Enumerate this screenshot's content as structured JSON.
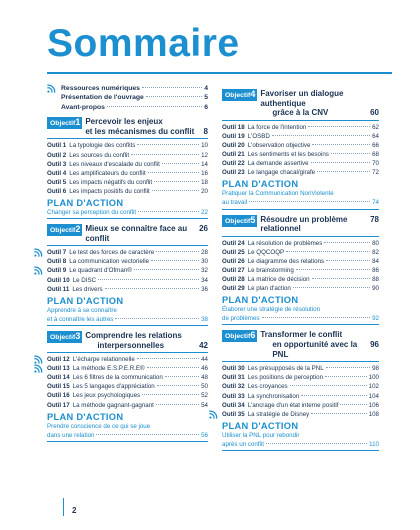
{
  "page": {
    "title": "Sommaire",
    "number": "2"
  },
  "front_matter": [
    {
      "label": "Ressources numériques",
      "page": "4",
      "rss": true
    },
    {
      "label": "Présentation de l'ouvrage",
      "page": "5",
      "rss": false
    },
    {
      "label": "Avant-propos",
      "page": "6",
      "rss": false
    }
  ],
  "objectives": [
    {
      "badge": "Objectif",
      "number": "1",
      "title_line1": "Percevoir les enjeux",
      "title_line2": "et les mécanismes du conflit",
      "page": "8",
      "tools": [
        {
          "label": "Outil 1",
          "text": "La typologie des conflits",
          "page": "10",
          "rss": false
        },
        {
          "label": "Outil 2",
          "text": "Les sources du conflit",
          "page": "12",
          "rss": false
        },
        {
          "label": "Outil 3",
          "text": "Les niveaux d'escalade du conflit",
          "page": "14",
          "rss": false
        },
        {
          "label": "Outil 4",
          "text": "Les amplificateurs du conflit",
          "page": "16",
          "rss": false
        },
        {
          "label": "Outil 5",
          "text": "Les impacts négatifs du conflit",
          "page": "18",
          "rss": false
        },
        {
          "label": "Outil 6",
          "text": "Les impacts positifs du conflit",
          "page": "20",
          "rss": false
        }
      ],
      "plan": {
        "title": "PLAN D'ACTION",
        "lines": [
          "Changer sa perception du conflit"
        ],
        "page": "22"
      }
    },
    {
      "badge": "Objectif",
      "number": "2",
      "title_line1": "",
      "title_line2": "Mieux se connaître face au conflit",
      "page": "26",
      "tools": [
        {
          "label": "Outil 7",
          "text": "Le test des forces de caractère",
          "page": "28",
          "rss": true
        },
        {
          "label": "Outil 8",
          "text": "La communication vectorielle",
          "page": "30",
          "rss": false
        },
        {
          "label": "Outil 9",
          "text": "Le quadrant d'Ofman®",
          "page": "32",
          "rss": true
        },
        {
          "label": "Outil 10",
          "text": "Le DISC",
          "page": "34",
          "rss": false
        },
        {
          "label": "Outil 11",
          "text": "Les drivers",
          "page": "36",
          "rss": false
        }
      ],
      "plan": {
        "title": "PLAN D'ACTION",
        "lines": [
          "Apprendre à se connaître",
          "et à connaître les autres"
        ],
        "page": "38"
      }
    },
    {
      "badge": "Objectif",
      "number": "3",
      "title_line1": "Comprendre les relations",
      "title_line2": "interpersonnelles",
      "page": "42",
      "tools": [
        {
          "label": "Outil 12",
          "text": "L'écharpe relationnelle",
          "page": "44",
          "rss": true
        },
        {
          "label": "Outil 13",
          "text": "La méthode E.S.P.E.R.E®",
          "page": "46",
          "rss": true
        },
        {
          "label": "Outil 14",
          "text": "Les 6 filtres de la communication",
          "page": "48",
          "rss": false
        },
        {
          "label": "Outil 15",
          "text": "Les 5 langages d'appréciation",
          "page": "50",
          "rss": false
        },
        {
          "label": "Outil 16",
          "text": "Les jeux psychologiques",
          "page": "52",
          "rss": false
        },
        {
          "label": "Outil 17",
          "text": "La méthode gagnant-gagnant",
          "page": "54",
          "rss": false
        }
      ],
      "plan": {
        "title": "PLAN D'ACTION",
        "lines": [
          "Prendre conscience de ce qui se joue",
          "dans une relation"
        ],
        "page": "56"
      }
    },
    {
      "badge": "Objectif",
      "number": "4",
      "title_line1": "Favoriser un dialogue authentique",
      "title_line2": "grâce à la CNV",
      "page": "60",
      "tools": [
        {
          "label": "Outil 18",
          "text": "La force de l'intention",
          "page": "62",
          "rss": false
        },
        {
          "label": "Outil 19",
          "text": "L'OSBD",
          "page": "64",
          "rss": false
        },
        {
          "label": "Outil 20",
          "text": "L'observation objective",
          "page": "66",
          "rss": false
        },
        {
          "label": "Outil 21",
          "text": "Les sentiments et les besoins",
          "page": "68",
          "rss": false
        },
        {
          "label": "Outil 22",
          "text": "La demande assertive",
          "page": "70",
          "rss": false
        },
        {
          "label": "Outil 23",
          "text": "Le langage chacal/girafe",
          "page": "72",
          "rss": false
        }
      ],
      "plan": {
        "title": "PLAN D'ACTION",
        "lines": [
          "Pratiquer la Communication NonViolente",
          "au travail"
        ],
        "page": "74"
      }
    },
    {
      "badge": "Objectif",
      "number": "5",
      "title_line1": "",
      "title_line2": "Résoudre un problème relationnel",
      "page": "78",
      "tools": [
        {
          "label": "Outil 24",
          "text": "La résolution de problèmes",
          "page": "80",
          "rss": false
        },
        {
          "label": "Outil 25",
          "text": "Le QQCOQP",
          "page": "82",
          "rss": false
        },
        {
          "label": "Outil 26",
          "text": "Le diagramme des relations",
          "page": "84",
          "rss": false
        },
        {
          "label": "Outil 27",
          "text": "Le brainstorming",
          "page": "86",
          "rss": false
        },
        {
          "label": "Outil 28",
          "text": "La matrice de décision",
          "page": "88",
          "rss": false
        },
        {
          "label": "Outil 29",
          "text": "Le plan d'action",
          "page": "90",
          "rss": false
        }
      ],
      "plan": {
        "title": "PLAN D'ACTION",
        "lines": [
          "Élaborer une stratégie de résolution",
          "de problèmes"
        ],
        "page": "92"
      }
    },
    {
      "badge": "Objectif",
      "number": "6",
      "title_line1": "Transformer le conflit",
      "title_line2": "en opportunité avec la PNL",
      "page": "96",
      "tools": [
        {
          "label": "Outil 30",
          "text": "Les présupposés de la PNL",
          "page": "98",
          "rss": false
        },
        {
          "label": "Outil 31",
          "text": "Les positions de perception",
          "page": "100",
          "rss": false
        },
        {
          "label": "Outil 32",
          "text": "Les croyances",
          "page": "102",
          "rss": false
        },
        {
          "label": "Outil 33",
          "text": "La synchronisation",
          "page": "104",
          "rss": false
        },
        {
          "label": "Outil 34",
          "text": "L'ancrage d'un état interne positif",
          "page": "106",
          "rss": false
        },
        {
          "label": "Outil 35",
          "text": "La stratégie de Disney",
          "page": "108",
          "rss": true
        }
      ],
      "plan": {
        "title": "PLAN D'ACTION",
        "lines": [
          "Utiliser la PNL pour rebondir",
          "après un conflit"
        ],
        "page": "110"
      }
    }
  ],
  "colors": {
    "accent": "#1b8fcf",
    "text": "#1a3352",
    "rss_icon": "#1b8fcf"
  }
}
